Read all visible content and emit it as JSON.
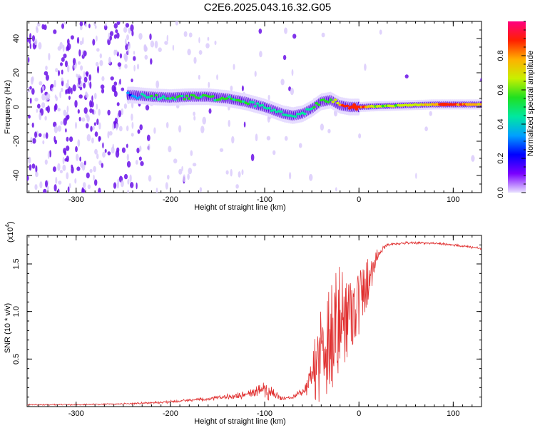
{
  "title": "C2E6.2025.043.16.32.G05",
  "colors": {
    "snr_line": "#e03030",
    "scatter_purple": "#6a10e8",
    "colormap": [
      "#e8e0ff",
      "#7a00ff",
      "#0000ff",
      "#00a0ff",
      "#00e8a0",
      "#20e020",
      "#c8f000",
      "#ffb000",
      "#ff2000",
      "#ff0080"
    ]
  },
  "chart_data": [
    {
      "type": "heatmap",
      "xlabel": "Height of straight line (km)",
      "ylabel": "Frequency (Hz)",
      "xlim": [
        -352,
        130
      ],
      "ylim": [
        -50,
        50
      ],
      "x_ticks": [
        -300,
        -200,
        -100,
        0,
        100
      ],
      "x_tick_labels": [
        "-300",
        "-200",
        "-100",
        "0",
        "100"
      ],
      "y_ticks": [
        -40,
        -20,
        0,
        20,
        40
      ],
      "y_tick_labels": [
        "-40",
        "-20",
        "0",
        "20",
        "40"
      ],
      "colorbar": {
        "label": "Normalized spectral amplitude",
        "range": [
          0,
          1
        ],
        "ticks": [
          0.0,
          0.2,
          0.4,
          0.6,
          0.8
        ],
        "tick_labels": [
          "0.0",
          "0.2",
          "0.4",
          "0.6",
          "0.8"
        ]
      },
      "ridge": {
        "x": [
          -240,
          -220,
          -200,
          -180,
          -160,
          -140,
          -120,
          -100,
          -90,
          -80,
          -70,
          -60,
          -50,
          -40,
          -30,
          -20,
          -10,
          0,
          20,
          50,
          80,
          100,
          130
        ],
        "y": [
          7,
          6,
          5.5,
          6,
          6,
          5,
          3,
          0,
          -2,
          -4,
          -5,
          -4,
          -1,
          3,
          4,
          1,
          0,
          0,
          0.5,
          1,
          1.5,
          1.5,
          1.5
        ],
        "amplitude": [
          0.3,
          0.5,
          0.5,
          0.5,
          0.55,
          0.55,
          0.5,
          0.45,
          0.4,
          0.4,
          0.4,
          0.45,
          0.5,
          0.55,
          0.6,
          0.8,
          0.9,
          0.9,
          0.6,
          0.65,
          0.75,
          0.9,
          0.7
        ]
      },
      "grid": false
    },
    {
      "type": "line",
      "xlabel": "Height of straight line (km)",
      "ylabel": "SNR (10 * v/v)",
      "y_scale_label": "(x10",
      "y_scale_exponent": "4",
      "y_scale_suffix": ")",
      "xlim": [
        -352,
        130
      ],
      "ylim": [
        0,
        1.8
      ],
      "x_ticks": [
        -300,
        -200,
        -100,
        0,
        100
      ],
      "x_tick_labels": [
        "-300",
        "-200",
        "-100",
        "0",
        "100"
      ],
      "y_ticks": [
        0.5,
        1.0,
        1.5
      ],
      "y_tick_labels": [
        "0.5",
        "1.0",
        "1.5"
      ],
      "envelope": {
        "x": [
          -352,
          -300,
          -250,
          -220,
          -200,
          -180,
          -160,
          -140,
          -120,
          -110,
          -100,
          -90,
          -80,
          -70,
          -60,
          -50,
          -45,
          -40,
          -35,
          -30,
          -25,
          -20,
          -15,
          -10,
          -5,
          0,
          5,
          10,
          20,
          30,
          50,
          80,
          100,
          130
        ],
        "mean": [
          0.02,
          0.02,
          0.03,
          0.04,
          0.05,
          0.07,
          0.08,
          0.1,
          0.12,
          0.16,
          0.2,
          0.12,
          0.08,
          0.1,
          0.15,
          0.3,
          0.45,
          0.6,
          0.7,
          0.75,
          0.8,
          0.9,
          0.95,
          1.0,
          1.05,
          1.1,
          1.2,
          1.35,
          1.6,
          1.7,
          1.72,
          1.72,
          1.7,
          1.66
        ],
        "noise": [
          0.01,
          0.01,
          0.01,
          0.02,
          0.02,
          0.02,
          0.03,
          0.04,
          0.06,
          0.1,
          0.14,
          0.1,
          0.04,
          0.04,
          0.06,
          0.2,
          0.4,
          0.55,
          0.6,
          0.7,
          0.65,
          0.6,
          0.5,
          0.45,
          0.4,
          0.4,
          0.3,
          0.25,
          0.08,
          0.02,
          0.02,
          0.02,
          0.02,
          0.02
        ]
      },
      "grid": false
    }
  ]
}
